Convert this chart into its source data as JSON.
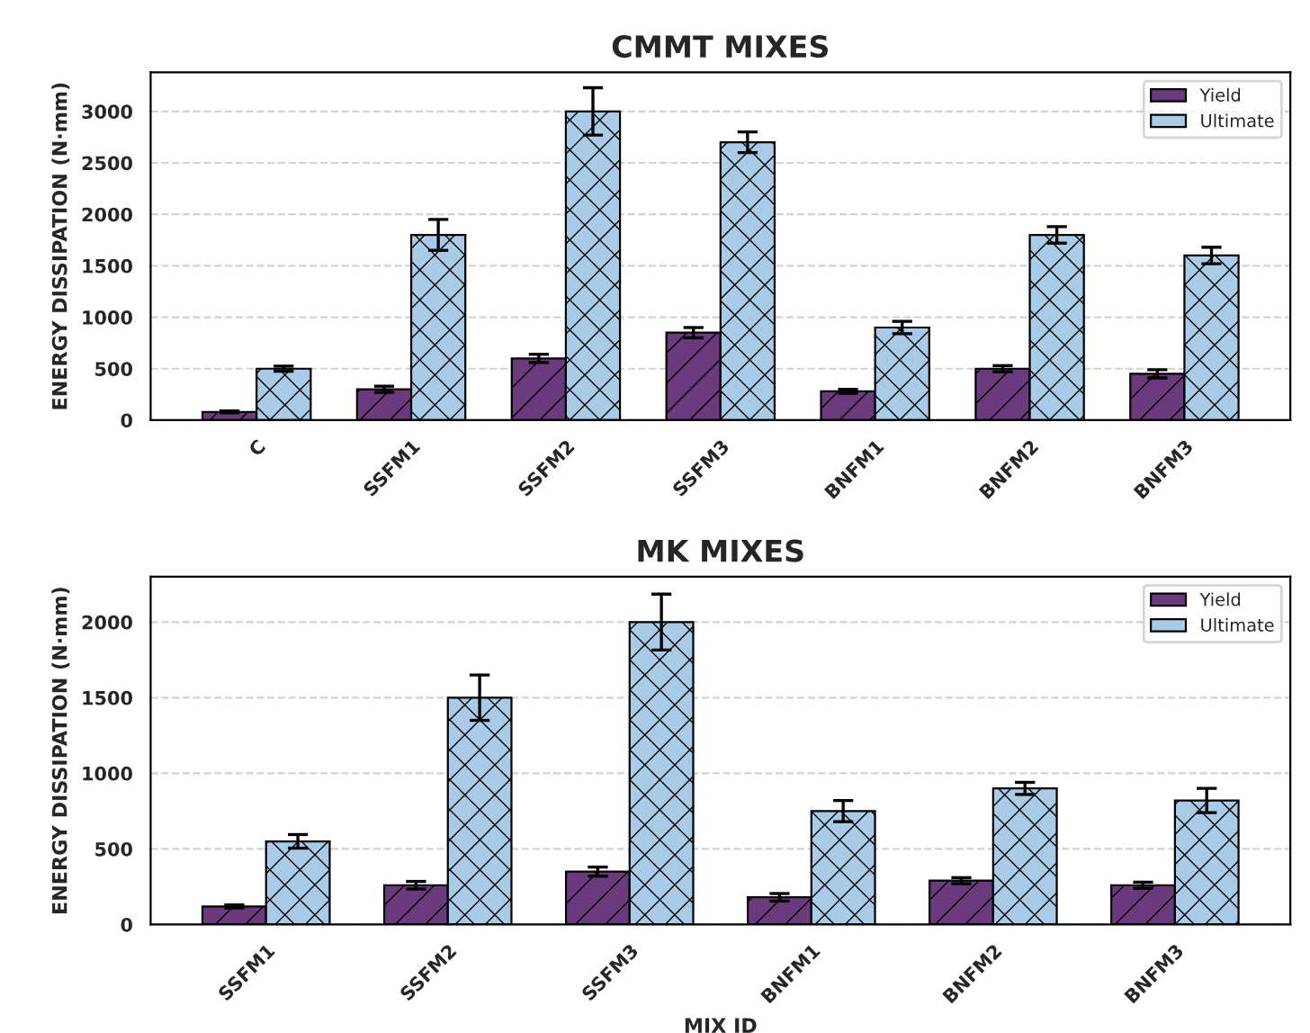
{
  "chart_data": [
    {
      "type": "bar",
      "title": "CMMT MIXES",
      "ylabel": "ENERGY DISSIPATION (N·mm)",
      "categories": [
        "C",
        "SSFM1",
        "SSFM2",
        "SSFM3",
        "BNFM1",
        "BNFM2",
        "BNFM3"
      ],
      "ylim": [
        0,
        3380
      ],
      "yticks": [
        0,
        500,
        1000,
        1500,
        2000,
        2500,
        3000
      ],
      "grid": "y",
      "legend": "top right",
      "series": [
        {
          "name": "Yield",
          "color": "#6b3a7d",
          "values": [
            80,
            300,
            600,
            850,
            280,
            500,
            450
          ],
          "errors": [
            10,
            30,
            40,
            50,
            20,
            30,
            40
          ]
        },
        {
          "name": "Ultimate",
          "color": "#a9cbe8",
          "values": [
            500,
            1800,
            3000,
            2700,
            900,
            1800,
            1600
          ],
          "errors": [
            25,
            150,
            230,
            100,
            60,
            80,
            80
          ]
        }
      ]
    },
    {
      "type": "bar",
      "title": "MK MIXES",
      "xlabel": "MIX ID",
      "ylabel": "ENERGY DISSIPATION (N·mm)",
      "categories": [
        "SSFM1",
        "SSFM2",
        "SSFM3",
        "BNFM1",
        "BNFM2",
        "BNFM3"
      ],
      "ylim": [
        0,
        2300
      ],
      "yticks": [
        0,
        500,
        1000,
        1500,
        2000
      ],
      "grid": "y",
      "legend": "top right",
      "series": [
        {
          "name": "Yield",
          "color": "#6b3a7d",
          "values": [
            120,
            260,
            350,
            180,
            290,
            260
          ],
          "errors": [
            10,
            25,
            30,
            25,
            20,
            20
          ]
        },
        {
          "name": "Ultimate",
          "color": "#a9cbe8",
          "values": [
            550,
            1500,
            2000,
            750,
            900,
            820
          ],
          "errors": [
            45,
            150,
            185,
            70,
            40,
            80
          ]
        }
      ]
    }
  ]
}
